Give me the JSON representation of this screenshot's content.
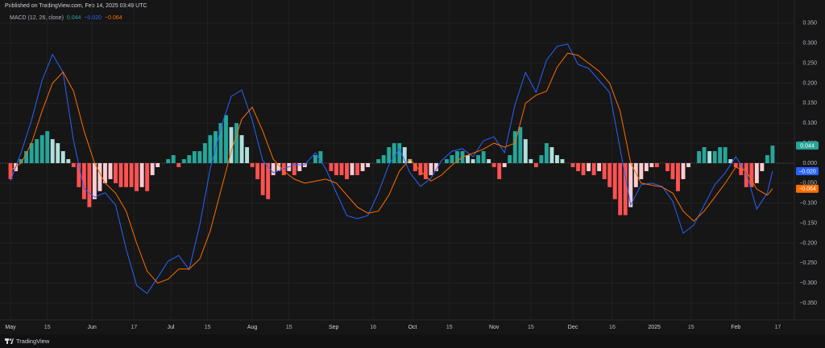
{
  "header": {
    "text": "Published on TradingView.com, Feb 14, 2025 03:49 UTC"
  },
  "footer": {
    "text": "TradingView"
  },
  "chart_data": {
    "type": "macd",
    "legend_title": "MACD (12, 26, close)",
    "xlim": [
      -4,
      298
    ],
    "ylim": [
      -0.39,
      0.39
    ],
    "grid": true,
    "xticks": [
      {
        "value": 0,
        "label": "May"
      },
      {
        "value": 14,
        "label": "15"
      },
      {
        "value": 31,
        "label": "Jun"
      },
      {
        "value": 47,
        "label": "17"
      },
      {
        "value": 61,
        "label": "Jul"
      },
      {
        "value": 75,
        "label": "15"
      },
      {
        "value": 92,
        "label": "Aug"
      },
      {
        "value": 106,
        "label": "15"
      },
      {
        "value": 123,
        "label": "Sep"
      },
      {
        "value": 138,
        "label": "16"
      },
      {
        "value": 153,
        "label": "Oct"
      },
      {
        "value": 167,
        "label": "15"
      },
      {
        "value": 184,
        "label": "Nov"
      },
      {
        "value": 198,
        "label": "15"
      },
      {
        "value": 214,
        "label": "Dec"
      },
      {
        "value": 229,
        "label": "16"
      },
      {
        "value": 245,
        "label": "2025"
      },
      {
        "value": 259,
        "label": "15"
      },
      {
        "value": 276,
        "label": "Feb"
      },
      {
        "value": 292,
        "label": "17"
      }
    ],
    "yticks": [
      {
        "value": 0.35,
        "label": "0.350"
      },
      {
        "value": 0.3,
        "label": "0.300"
      },
      {
        "value": 0.25,
        "label": "0.250"
      },
      {
        "value": 0.2,
        "label": "0.200"
      },
      {
        "value": 0.15,
        "label": "0.150"
      },
      {
        "value": 0.1,
        "label": "0.100"
      },
      {
        "value": 0.05,
        "label": "0.050"
      },
      {
        "value": 0,
        "label": "0.000"
      },
      {
        "value": -0.05,
        "label": "−0.050"
      },
      {
        "value": -0.1,
        "label": "−0.100"
      },
      {
        "value": -0.15,
        "label": "−0.150"
      },
      {
        "value": -0.2,
        "label": "−0.200"
      },
      {
        "value": -0.25,
        "label": "−0.250"
      },
      {
        "value": -0.3,
        "label": "−0.300"
      },
      {
        "value": -0.35,
        "label": "−0.350"
      }
    ],
    "series": [
      {
        "kind": "histogram",
        "color": "#26a69a",
        "last_label": "0.044",
        "colors": {
          "grow_above": "#26a69a",
          "fall_above": "#b2dfdb",
          "grow_below": "#ff5252",
          "fall_below": "#ffcdd2"
        },
        "x": [
          0,
          2,
          4,
          6,
          8,
          10,
          12,
          14,
          16,
          18,
          20,
          22,
          24,
          26,
          28,
          30,
          32,
          34,
          36,
          38,
          40,
          42,
          44,
          46,
          48,
          50,
          52,
          54,
          56,
          58,
          60,
          62,
          64,
          66,
          68,
          70,
          72,
          74,
          76,
          78,
          80,
          82,
          84,
          86,
          88,
          90,
          92,
          94,
          96,
          98,
          100,
          102,
          104,
          106,
          108,
          110,
          112,
          114,
          116,
          118,
          120,
          122,
          124,
          126,
          128,
          130,
          132,
          134,
          136,
          138,
          140,
          142,
          144,
          146,
          148,
          150,
          152,
          154,
          156,
          158,
          160,
          162,
          164,
          166,
          168,
          170,
          172,
          174,
          176,
          178,
          180,
          182,
          184,
          186,
          188,
          190,
          192,
          194,
          196,
          198,
          200,
          202,
          204,
          206,
          208,
          210,
          212,
          214,
          216,
          218,
          220,
          222,
          224,
          226,
          228,
          230,
          232,
          234,
          236,
          238,
          240,
          242,
          244,
          246,
          248,
          250,
          252,
          254,
          256,
          258,
          260,
          262,
          264,
          266,
          268,
          270,
          272,
          274,
          276,
          278,
          280,
          282,
          284,
          286,
          288,
          290
        ],
        "values": [
          -0.04,
          -0.02,
          0.01,
          0.03,
          0.05,
          0.06,
          0.07,
          0.08,
          0.06,
          0.05,
          0.03,
          0.01,
          -0.01,
          -0.06,
          -0.09,
          -0.11,
          -0.09,
          -0.07,
          -0.05,
          -0.04,
          -0.05,
          -0.06,
          -0.06,
          -0.06,
          -0.07,
          -0.06,
          -0.07,
          -0.03,
          -0.01,
          0.0,
          0.01,
          0.02,
          -0.01,
          0.01,
          0.02,
          0.03,
          0.03,
          0.05,
          0.07,
          0.08,
          0.1,
          0.12,
          0.09,
          0.1,
          0.07,
          0.04,
          -0.01,
          -0.04,
          -0.08,
          -0.09,
          -0.03,
          -0.02,
          -0.03,
          -0.02,
          -0.03,
          -0.02,
          -0.01,
          0.0,
          0.02,
          0.03,
          0.0,
          -0.02,
          -0.03,
          -0.03,
          -0.04,
          -0.03,
          -0.03,
          -0.02,
          -0.01,
          0.0,
          0.01,
          0.02,
          0.04,
          0.05,
          0.05,
          0.04,
          0.01,
          -0.02,
          -0.03,
          -0.04,
          -0.03,
          -0.02,
          0.0,
          0.01,
          0.02,
          0.03,
          0.03,
          0.02,
          0.01,
          0.02,
          0.03,
          0.01,
          -0.01,
          -0.04,
          -0.01,
          0.02,
          0.08,
          0.09,
          0.06,
          0.01,
          -0.01,
          0.02,
          0.05,
          0.04,
          0.02,
          0.01,
          0.0,
          -0.01,
          -0.02,
          -0.03,
          -0.02,
          -0.03,
          -0.02,
          -0.04,
          -0.06,
          -0.09,
          -0.13,
          -0.13,
          -0.11,
          -0.06,
          -0.04,
          -0.02,
          -0.01,
          -0.01,
          0.0,
          -0.02,
          -0.04,
          -0.07,
          -0.04,
          -0.01,
          0.0,
          0.03,
          0.04,
          0.03,
          0.03,
          0.04,
          0.04,
          0.01,
          -0.01,
          -0.03,
          -0.06,
          -0.06,
          -0.05,
          -0.02,
          0.02,
          0.044
        ]
      },
      {
        "kind": "line",
        "color": "#2962ff",
        "last_label": "−0.020",
        "x": [
          0,
          4,
          8,
          12,
          16,
          20,
          24,
          28,
          32,
          36,
          40,
          44,
          48,
          52,
          56,
          60,
          64,
          68,
          72,
          76,
          80,
          84,
          88,
          92,
          96,
          100,
          104,
          108,
          112,
          116,
          120,
          124,
          128,
          132,
          136,
          140,
          144,
          148,
          152,
          156,
          160,
          164,
          168,
          172,
          176,
          180,
          184,
          188,
          192,
          196,
          200,
          204,
          208,
          212,
          216,
          220,
          224,
          228,
          232,
          236,
          240,
          244,
          248,
          252,
          256,
          260,
          264,
          268,
          272,
          276,
          280,
          284,
          288,
          290
        ],
        "values": [
          -0.044,
          0.026,
          0.107,
          0.207,
          0.272,
          0.227,
          0.056,
          -0.064,
          -0.085,
          -0.074,
          -0.105,
          -0.215,
          -0.306,
          -0.326,
          -0.286,
          -0.245,
          -0.231,
          -0.266,
          -0.155,
          -0.014,
          0.087,
          0.167,
          0.183,
          0.107,
          0.006,
          -0.024,
          -0.014,
          -0.004,
          -0.004,
          0.026,
          -0.014,
          -0.074,
          -0.131,
          -0.139,
          -0.131,
          -0.074,
          -0.004,
          0.036,
          -0.024,
          -0.058,
          -0.038,
          0.006,
          0.03,
          0.036,
          0.016,
          0.056,
          0.066,
          0.026,
          0.147,
          0.227,
          0.177,
          0.258,
          0.292,
          0.298,
          0.247,
          0.237,
          0.207,
          0.177,
          0.036,
          -0.105,
          -0.054,
          -0.05,
          -0.058,
          -0.095,
          -0.175,
          -0.155,
          -0.105,
          -0.054,
          -0.024,
          0.016,
          -0.024,
          -0.115,
          -0.074,
          -0.02
        ]
      },
      {
        "kind": "line",
        "color": "#ff6d00",
        "last_label": "−0.064",
        "x": [
          0,
          4,
          8,
          12,
          16,
          20,
          24,
          28,
          32,
          36,
          40,
          44,
          48,
          52,
          56,
          60,
          64,
          68,
          72,
          76,
          80,
          84,
          88,
          92,
          96,
          100,
          104,
          108,
          112,
          116,
          120,
          124,
          128,
          132,
          136,
          140,
          144,
          148,
          152,
          156,
          160,
          164,
          168,
          172,
          176,
          180,
          184,
          188,
          192,
          196,
          200,
          204,
          208,
          212,
          216,
          220,
          224,
          228,
          232,
          236,
          240,
          244,
          248,
          252,
          256,
          260,
          264,
          268,
          272,
          276,
          280,
          284,
          288,
          290
        ],
        "values": [
          -0.018,
          0.0,
          0.05,
          0.13,
          0.2,
          0.228,
          0.18,
          0.08,
          0.0,
          -0.05,
          -0.075,
          -0.12,
          -0.2,
          -0.27,
          -0.3,
          -0.29,
          -0.265,
          -0.265,
          -0.24,
          -0.17,
          -0.07,
          0.03,
          0.11,
          0.14,
          0.08,
          0.01,
          -0.02,
          -0.04,
          -0.05,
          -0.045,
          -0.04,
          -0.05,
          -0.08,
          -0.11,
          -0.125,
          -0.12,
          -0.08,
          -0.02,
          0.01,
          -0.02,
          -0.045,
          -0.03,
          -0.005,
          0.015,
          0.025,
          0.035,
          0.05,
          0.04,
          0.05,
          0.15,
          0.17,
          0.18,
          0.24,
          0.275,
          0.27,
          0.25,
          0.23,
          0.2,
          0.13,
          0.0,
          -0.05,
          -0.055,
          -0.06,
          -0.075,
          -0.12,
          -0.145,
          -0.12,
          -0.085,
          -0.05,
          -0.01,
          -0.02,
          -0.065,
          -0.08,
          -0.064
        ]
      }
    ]
  }
}
